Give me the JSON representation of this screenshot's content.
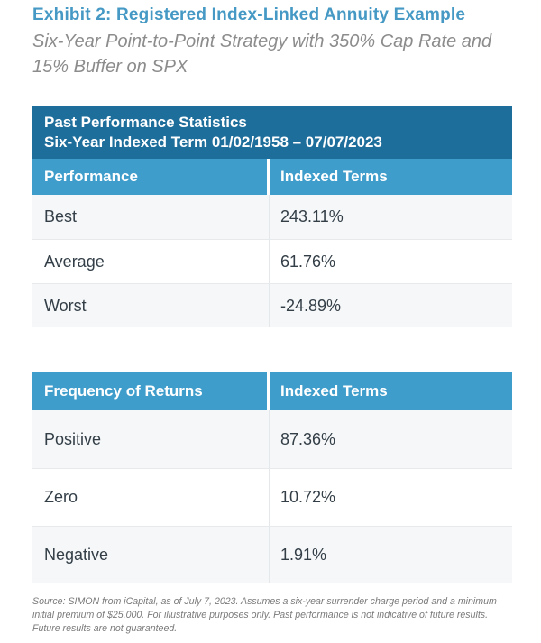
{
  "header": {
    "title": "Exhibit 2: Registered Index-Linked Annuity Example",
    "subtitle_line1": "Six-Year Point-to-Point Strategy with 350% Cap Rate and",
    "subtitle_line2": "15% Buffer on SPX"
  },
  "table1": {
    "title_line1": "Past Performance Statistics",
    "title_line2": "Six-Year Indexed Term 01/02/1958 – 07/07/2023",
    "col1": "Performance",
    "col2": "Indexed Terms",
    "rows": [
      {
        "label": "Best",
        "value": "243.11%"
      },
      {
        "label": "Average",
        "value": "61.76%"
      },
      {
        "label": "Worst",
        "value": "-24.89%"
      }
    ]
  },
  "table2": {
    "col1": "Frequency of Returns",
    "col2": "Indexed Terms",
    "rows": [
      {
        "label": "Positive",
        "value": "87.36%"
      },
      {
        "label": "Zero",
        "value": "10.72%"
      },
      {
        "label": "Negative",
        "value": "1.91%"
      }
    ]
  },
  "footer": {
    "source": "Source: SIMON from iCapital, as of July 7, 2023. Assumes a six-year surrender charge period and a minimum initial premium of $25,000. For illustrative purposes only. Past performance is not indicative of future results. Future results are not guaranteed."
  },
  "colors": {
    "title_blue": "#4599C4",
    "dark_header_bg": "#1E6E9C",
    "light_header_bg": "#3F9DCB",
    "row_alt_bg": "#F5F7F8",
    "row_divider": "#E7EAEC",
    "body_text": "#333E47",
    "subtitle_gray": "#8C8C8C",
    "footnote_gray": "#7A7A7A"
  },
  "chart_data": [
    {
      "type": "table",
      "title": "Past Performance Statistics — Six-Year Indexed Term 01/02/1958 – 07/07/2023",
      "columns": [
        "Performance",
        "Indexed Terms"
      ],
      "rows": [
        [
          "Best",
          "243.11%"
        ],
        [
          "Average",
          "61.76%"
        ],
        [
          "Worst",
          "-24.89%"
        ]
      ]
    },
    {
      "type": "table",
      "title": "Frequency of Returns",
      "columns": [
        "Frequency of Returns",
        "Indexed Terms"
      ],
      "rows": [
        [
          "Positive",
          "87.36%"
        ],
        [
          "Zero",
          "10.72%"
        ],
        [
          "Negative",
          "1.91%"
        ]
      ]
    }
  ]
}
